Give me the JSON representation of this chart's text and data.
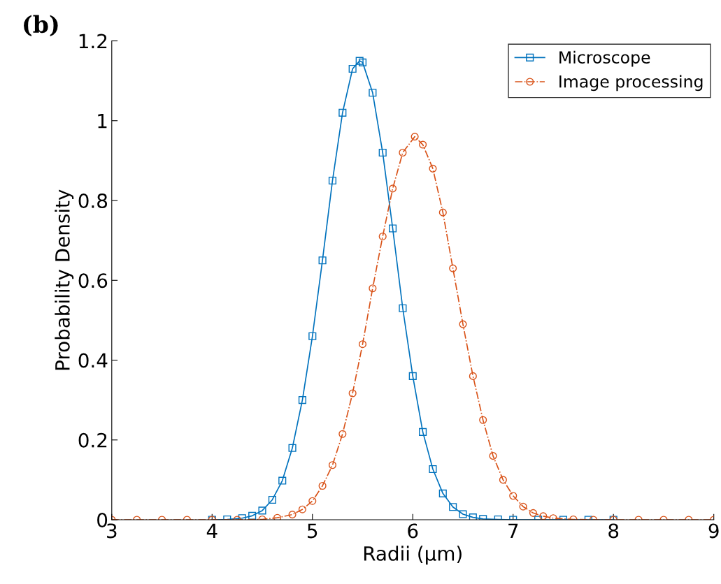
{
  "chart_data": {
    "type": "line",
    "xlabel": "Radii (μm)",
    "ylabel": "Probability Density",
    "annotations": [
      "(b)"
    ],
    "xlim": [
      3,
      9
    ],
    "xticks": [
      3,
      4,
      5,
      6,
      7,
      8,
      9
    ],
    "ylim": [
      0,
      1.2
    ],
    "yticks": [
      0,
      0.2,
      0.4,
      0.6,
      0.8,
      1,
      1.2
    ],
    "grid": false,
    "legend": "top right",
    "series": [
      {
        "name": "Microscope",
        "color": "#0072bd",
        "marker": "square",
        "line_style": "solid",
        "x": [
          4,
          4.15,
          4.3,
          4.4,
          4.5,
          4.6,
          4.7,
          4.8,
          4.9,
          5,
          5.1,
          5.2,
          5.3,
          5.4,
          5.47,
          5.5,
          5.6,
          5.7,
          5.8,
          5.9,
          6,
          6.1,
          6.2,
          6.3,
          6.4,
          6.5,
          6.6,
          6.7,
          6.85,
          7,
          7.25,
          7.5,
          7.75,
          8
        ],
        "values": [
          0,
          0.001,
          0.004,
          0.01,
          0.023,
          0.05,
          0.098,
          0.18,
          0.3,
          0.46,
          0.65,
          0.85,
          1.02,
          1.13,
          1.15,
          1.146,
          1.07,
          0.92,
          0.73,
          0.53,
          0.36,
          0.22,
          0.127,
          0.066,
          0.032,
          0.014,
          0.006,
          0.002,
          0.001,
          0,
          0,
          0,
          0,
          0
        ]
      },
      {
        "name": "Image processing",
        "color": "#d95319",
        "marker": "circle",
        "line_style": "dashdot",
        "x": [
          3,
          3.25,
          3.5,
          3.75,
          4,
          4.25,
          4.5,
          4.65,
          4.8,
          4.9,
          5,
          5.1,
          5.2,
          5.3,
          5.4,
          5.5,
          5.6,
          5.7,
          5.8,
          5.9,
          6.02,
          6.1,
          6.2,
          6.3,
          6.4,
          6.5,
          6.6,
          6.7,
          6.8,
          6.9,
          7,
          7.1,
          7.2,
          7.3,
          7.4,
          7.6,
          7.8,
          8,
          8.25,
          8.5,
          8.75,
          9
        ],
        "values": [
          0,
          0,
          0,
          0,
          0,
          0,
          0.001,
          0.005,
          0.013,
          0.026,
          0.047,
          0.085,
          0.137,
          0.215,
          0.317,
          0.44,
          0.58,
          0.71,
          0.83,
          0.92,
          0.96,
          0.94,
          0.88,
          0.77,
          0.63,
          0.49,
          0.36,
          0.25,
          0.16,
          0.1,
          0.06,
          0.033,
          0.017,
          0.009,
          0.004,
          0.001,
          0,
          0,
          0,
          0,
          0,
          0
        ]
      }
    ]
  }
}
